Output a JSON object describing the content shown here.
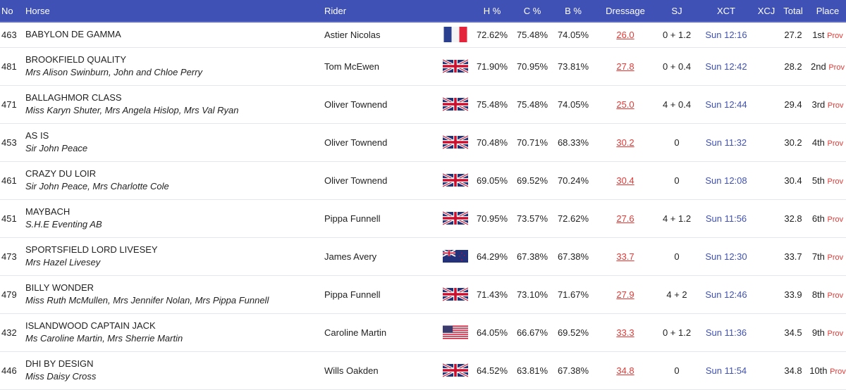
{
  "header": {
    "no": "No",
    "horse": "Horse",
    "rider": "Rider",
    "h": "H %",
    "c": "C %",
    "b": "B %",
    "dressage": "Dressage",
    "sj": "SJ",
    "xct": "XCT",
    "xcj": "XCJ",
    "total": "Total",
    "place": "Place"
  },
  "rows": [
    {
      "no": "463",
      "horse": "BABYLON DE GAMMA",
      "owner": "",
      "rider": "Astier Nicolas",
      "flag": "fr",
      "h": "72.62%",
      "c": "75.48%",
      "b": "74.05%",
      "dressage": "26.0",
      "sj": "0 + 1.2",
      "xct": "Sun 12:16",
      "xcj": "",
      "total": "27.2",
      "place": "1st",
      "prov": "Prov"
    },
    {
      "no": "481",
      "horse": "BROOKFIELD QUALITY",
      "owner": "Mrs Alison Swinburn, John and Chloe Perry",
      "rider": "Tom McEwen",
      "flag": "gb",
      "h": "71.90%",
      "c": "70.95%",
      "b": "73.81%",
      "dressage": "27.8",
      "sj": "0 + 0.4",
      "xct": "Sun 12:42",
      "xcj": "",
      "total": "28.2",
      "place": "2nd",
      "prov": "Prov"
    },
    {
      "no": "471",
      "horse": "BALLAGHMOR CLASS",
      "owner": "Miss Karyn Shuter, Mrs Angela Hislop, Mrs Val Ryan",
      "rider": "Oliver Townend",
      "flag": "gb",
      "h": "75.48%",
      "c": "75.48%",
      "b": "74.05%",
      "dressage": "25.0",
      "sj": "4 + 0.4",
      "xct": "Sun 12:44",
      "xcj": "",
      "total": "29.4",
      "place": "3rd",
      "prov": "Prov"
    },
    {
      "no": "453",
      "horse": "AS IS",
      "owner": "Sir John Peace",
      "rider": "Oliver Townend",
      "flag": "gb",
      "h": "70.48%",
      "c": "70.71%",
      "b": "68.33%",
      "dressage": "30.2",
      "sj": "0",
      "xct": "Sun 11:32",
      "xcj": "",
      "total": "30.2",
      "place": "4th",
      "prov": "Prov"
    },
    {
      "no": "461",
      "horse": "CRAZY DU LOIR",
      "owner": "Sir John Peace, Mrs Charlotte Cole",
      "rider": "Oliver Townend",
      "flag": "gb",
      "h": "69.05%",
      "c": "69.52%",
      "b": "70.24%",
      "dressage": "30.4",
      "sj": "0",
      "xct": "Sun 12:08",
      "xcj": "",
      "total": "30.4",
      "place": "5th",
      "prov": "Prov"
    },
    {
      "no": "451",
      "horse": "MAYBACH",
      "owner": "S.H.E Eventing AB",
      "rider": "Pippa Funnell",
      "flag": "gb",
      "h": "70.95%",
      "c": "73.57%",
      "b": "72.62%",
      "dressage": "27.6",
      "sj": "4 + 1.2",
      "xct": "Sun 11:56",
      "xcj": "",
      "total": "32.8",
      "place": "6th",
      "prov": "Prov"
    },
    {
      "no": "473",
      "horse": "SPORTSFIELD LORD LIVESEY",
      "owner": "Mrs Hazel Livesey",
      "rider": "James Avery",
      "flag": "nz",
      "h": "64.29%",
      "c": "67.38%",
      "b": "67.38%",
      "dressage": "33.7",
      "sj": "0",
      "xct": "Sun 12:30",
      "xcj": "",
      "total": "33.7",
      "place": "7th",
      "prov": "Prov"
    },
    {
      "no": "479",
      "horse": "BILLY WONDER",
      "owner": "Miss Ruth McMullen, Mrs Jennifer Nolan, Mrs Pippa Funnell",
      "rider": "Pippa Funnell",
      "flag": "gb",
      "h": "71.43%",
      "c": "73.10%",
      "b": "71.67%",
      "dressage": "27.9",
      "sj": "4 + 2",
      "xct": "Sun 12:46",
      "xcj": "",
      "total": "33.9",
      "place": "8th",
      "prov": "Prov"
    },
    {
      "no": "432",
      "horse": "ISLANDWOOD CAPTAIN JACK",
      "owner": "Ms Caroline Martin, Mrs Sherrie Martin",
      "rider": "Caroline Martin",
      "flag": "us",
      "h": "64.05%",
      "c": "66.67%",
      "b": "69.52%",
      "dressage": "33.3",
      "sj": "0 + 1.2",
      "xct": "Sun 11:36",
      "xcj": "",
      "total": "34.5",
      "place": "9th",
      "prov": "Prov"
    },
    {
      "no": "446",
      "horse": "DHI BY DESIGN",
      "owner": "Miss Daisy Cross",
      "rider": "Wills Oakden",
      "flag": "gb",
      "h": "64.52%",
      "c": "63.81%",
      "b": "67.38%",
      "dressage": "34.8",
      "sj": "0",
      "xct": "Sun 11:54",
      "xcj": "",
      "total": "34.8",
      "place": "10th",
      "prov": "Prov"
    }
  ],
  "colors": {
    "header_bg": "#3f51b5",
    "link_red": "#e53935",
    "time_blue": "#3f51b5"
  }
}
